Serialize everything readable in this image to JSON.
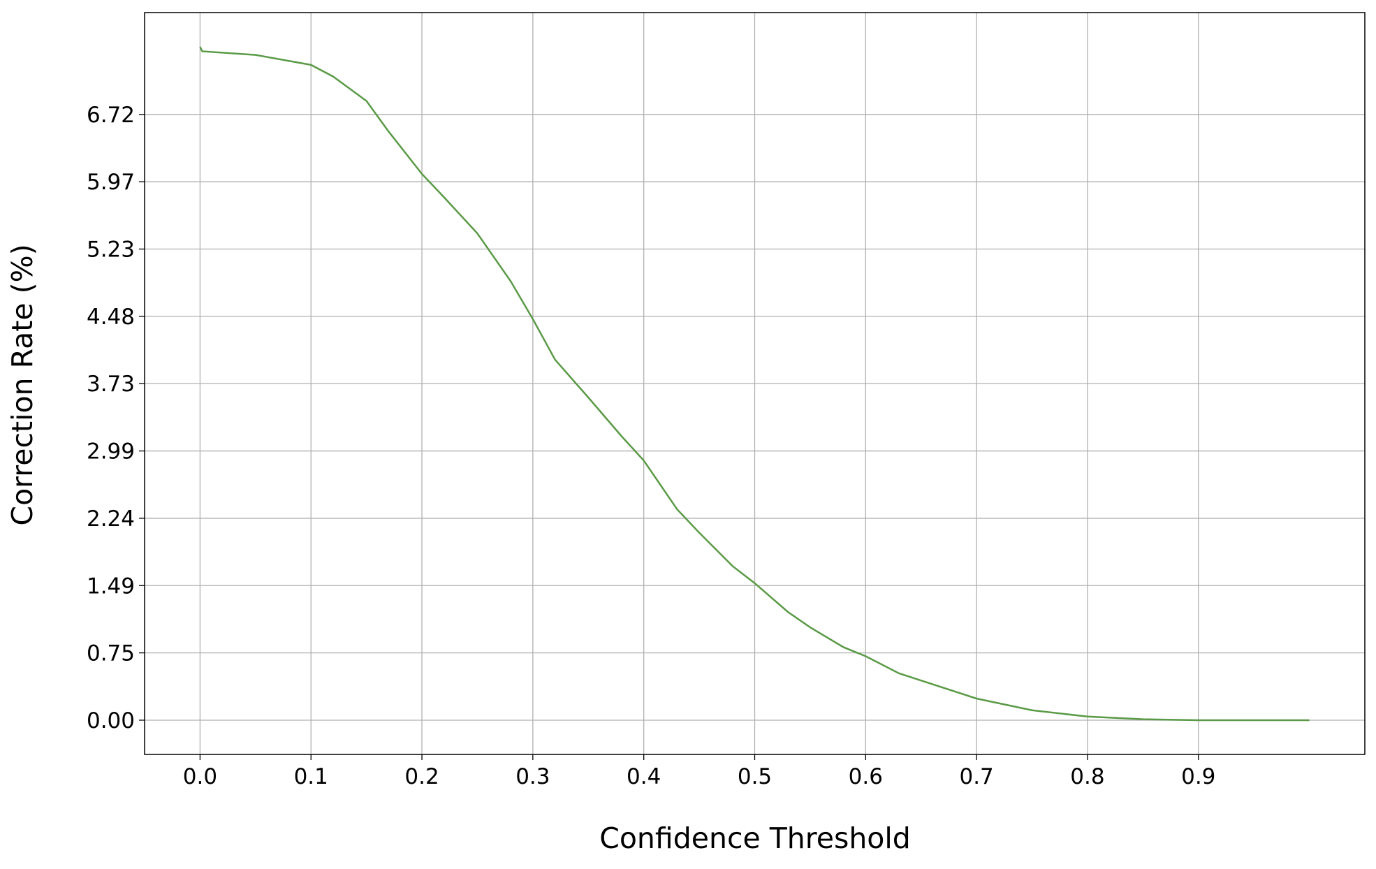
{
  "chart_data": {
    "type": "line",
    "xlabel": "Confidence Threshold",
    "ylabel": "Correction Rate (%)",
    "x": [
      0,
      0.002,
      0.05,
      0.1,
      0.12,
      0.15,
      0.17,
      0.2,
      0.22,
      0.25,
      0.28,
      0.3,
      0.32,
      0.35,
      0.38,
      0.4,
      0.43,
      0.45,
      0.48,
      0.5,
      0.53,
      0.55,
      0.58,
      0.6,
      0.63,
      0.65,
      0.7,
      0.75,
      0.8,
      0.85,
      0.9,
      1.0
    ],
    "series": [
      {
        "name": "Correction Rate",
        "color": "#5a9a46",
        "values": [
          7.47,
          7.42,
          7.38,
          7.27,
          7.14,
          6.87,
          6.53,
          6.06,
          5.8,
          5.4,
          4.87,
          4.45,
          4.0,
          3.58,
          3.15,
          2.88,
          2.34,
          2.08,
          1.71,
          1.52,
          1.2,
          1.03,
          0.81,
          0.71,
          0.52,
          0.44,
          0.24,
          0.11,
          0.04,
          0.01,
          0,
          0
        ]
      }
    ],
    "xlim": [
      -0.05,
      1.05
    ],
    "xticks": [
      {
        "value": 0,
        "label": "0.0"
      },
      0.1,
      0.2,
      0.3,
      0.4,
      0.5,
      0.6,
      0.7,
      0.8,
      0.9
    ],
    "ylim": [
      -0.38,
      7.85
    ],
    "yticks": [
      {
        "value": 0,
        "label": "0.00"
      },
      {
        "value": 0.7467,
        "label": "0.75"
      },
      {
        "value": 1.4933,
        "label": "1.49"
      },
      {
        "value": 2.24,
        "label": "2.24"
      },
      {
        "value": 2.9867,
        "label": "2.99"
      },
      {
        "value": 3.7333,
        "label": "3.73"
      },
      {
        "value": 4.48,
        "label": "4.48"
      },
      {
        "value": 5.2267,
        "label": "5.23"
      },
      {
        "value": 5.9733,
        "label": "5.97"
      },
      {
        "value": 6.72,
        "label": "6.72"
      }
    ],
    "grid": true
  }
}
